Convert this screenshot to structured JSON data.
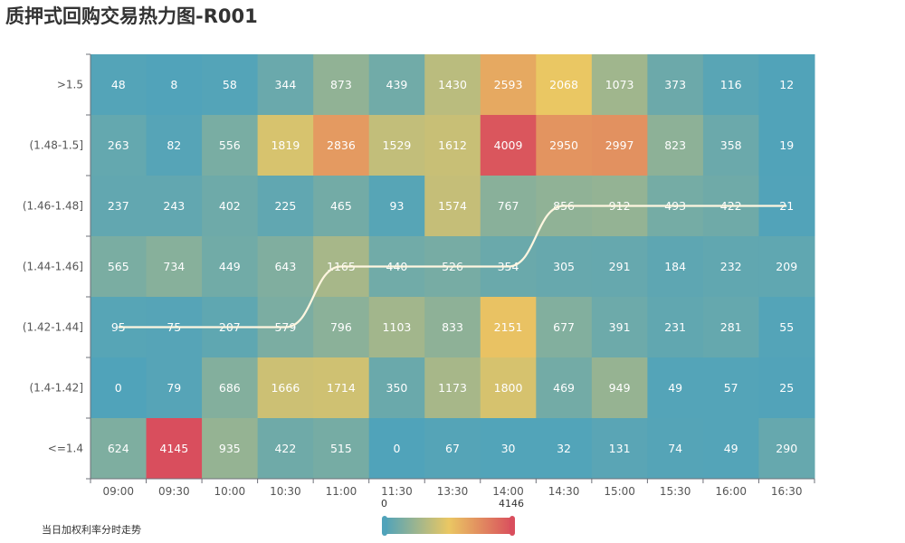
{
  "title": "质押式回购交易热力图-R001",
  "legend": {
    "series_name": "当日加权利率分时走势"
  },
  "visual_map": {
    "min_label": "0",
    "max_label": "4146",
    "min": 0,
    "max": 4146,
    "colors": [
      "#50a3ba",
      "#eac763",
      "#d94e5d"
    ]
  },
  "chart_data": {
    "type": "heatmap",
    "title": "质押式回购交易热力图-R001",
    "x": [
      "09:00",
      "09:30",
      "10:00",
      "10:30",
      "11:00",
      "11:30",
      "13:30",
      "14:00",
      "14:30",
      "15:00",
      "15:30",
      "16:00",
      "16:30"
    ],
    "y": [
      ">1.5",
      "(1.48-1.5]",
      "(1.46-1.48]",
      "(1.44-1.46]",
      "(1.42-1.44]",
      "(1.4-1.42]",
      "<=1.4"
    ],
    "values": [
      [
        48,
        8,
        58,
        344,
        873,
        439,
        1430,
        2593,
        2068,
        1073,
        373,
        116,
        12
      ],
      [
        263,
        82,
        556,
        1819,
        2836,
        1529,
        1612,
        4009,
        2950,
        2997,
        823,
        358,
        19
      ],
      [
        237,
        243,
        402,
        225,
        465,
        93,
        1574,
        767,
        856,
        912,
        493,
        422,
        21
      ],
      [
        565,
        734,
        449,
        643,
        1165,
        440,
        526,
        354,
        305,
        291,
        184,
        232,
        209
      ],
      [
        95,
        75,
        207,
        579,
        796,
        1103,
        833,
        2151,
        677,
        391,
        231,
        281,
        55
      ],
      [
        0,
        79,
        686,
        1666,
        1714,
        350,
        1173,
        1800,
        469,
        949,
        49,
        57,
        25
      ],
      [
        624,
        4145,
        935,
        422,
        515,
        0,
        67,
        30,
        32,
        131,
        74,
        49,
        290
      ]
    ],
    "value_range": [
      0,
      4146
    ],
    "series": [
      {
        "name": "当日加权利率分时走势",
        "type": "line",
        "values": [
          "(1.42-1.44]",
          "(1.42-1.44]",
          "(1.42-1.44]",
          "(1.42-1.44]",
          "(1.44-1.46]",
          "(1.44-1.46]",
          "(1.44-1.46]",
          "(1.44-1.46]",
          "(1.46-1.48]",
          "(1.46-1.48]",
          "(1.46-1.48]",
          "(1.46-1.48]",
          "(1.46-1.48]"
        ],
        "color": "#fff6e0"
      }
    ],
    "legend_position": "bottom-left"
  }
}
